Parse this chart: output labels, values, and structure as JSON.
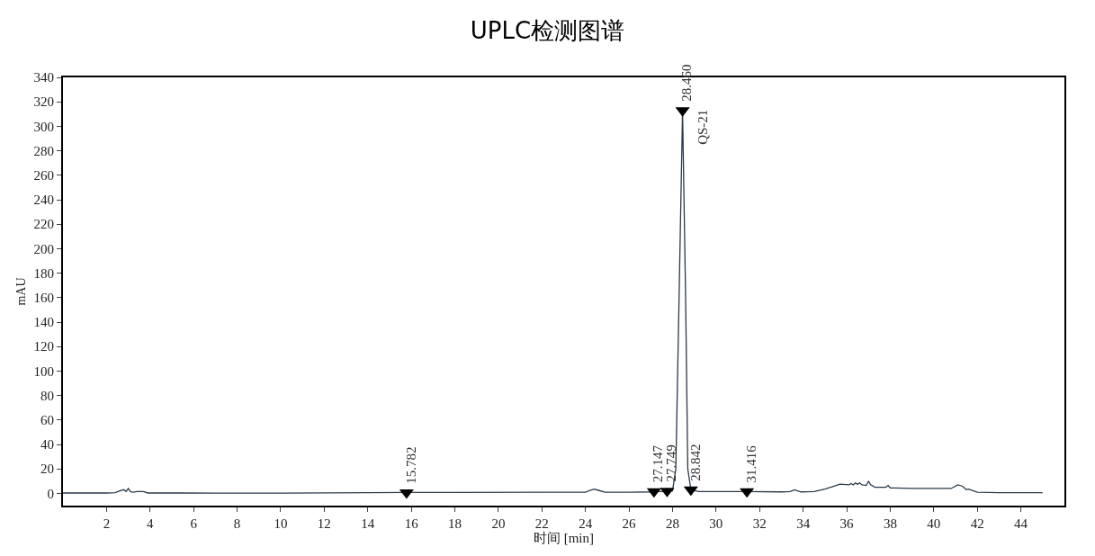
{
  "chart_data": {
    "type": "line",
    "title": "UPLC检测图谱",
    "xlabel": "时间 [min]",
    "ylabel": "mAU",
    "xlim": [
      0,
      46
    ],
    "ylim": [
      -10,
      340
    ],
    "xticks": [
      2,
      4,
      6,
      8,
      10,
      12,
      14,
      16,
      18,
      20,
      22,
      24,
      26,
      28,
      30,
      32,
      34,
      36,
      38,
      40,
      42,
      44
    ],
    "yticks": [
      0,
      20,
      40,
      60,
      80,
      100,
      120,
      140,
      160,
      180,
      200,
      220,
      240,
      260,
      280,
      300,
      320,
      340
    ],
    "grid": false,
    "legend": false,
    "line_style": "solid",
    "series": [
      {
        "color": "#2b3a4a",
        "x": [
          0,
          1,
          2,
          2.4,
          2.6,
          2.8,
          2.9,
          3.0,
          3.1,
          3.2,
          3.4,
          3.7,
          3.9,
          4.5,
          5.5,
          7,
          10,
          14,
          15.782,
          18,
          22,
          24,
          24.2,
          24.4,
          24.6,
          24.9,
          26,
          27,
          27.147,
          27.5,
          27.749,
          28,
          28.15,
          28.3,
          28.46,
          28.6,
          28.7,
          28.842,
          29.2,
          31.416,
          33,
          33.4,
          33.6,
          33.9,
          34.5,
          35,
          35.7,
          36.1,
          36.2,
          36.3,
          36.4,
          36.5,
          36.6,
          36.7,
          36.9,
          37.0,
          37.1,
          37.3,
          37.8,
          37.9,
          38.0,
          38.2,
          39,
          40.8,
          41.1,
          41.3,
          41.5,
          41.6,
          42,
          43,
          45
        ],
        "values": [
          0.3,
          0.3,
          0.3,
          0.5,
          2,
          3,
          1.5,
          4,
          1.5,
          1,
          1.5,
          1.5,
          0.3,
          0.3,
          0.3,
          0.2,
          0.2,
          0.5,
          0.7,
          0.8,
          1,
          1,
          2.5,
          3.5,
          2.5,
          1,
          1,
          1.2,
          1.5,
          1.5,
          2,
          2,
          20,
          160,
          313,
          160,
          20,
          3,
          1.5,
          1.5,
          1.2,
          1.5,
          3,
          1.2,
          1.5,
          3.5,
          7.5,
          7,
          8,
          7,
          8.5,
          7.5,
          8.5,
          7,
          6.5,
          10,
          7,
          5,
          5,
          6.5,
          4.5,
          4.5,
          4,
          4,
          7,
          6,
          3,
          3.5,
          1,
          0.5,
          0.5
        ]
      },
      {
        "type": "scatter",
        "marker": "triangle",
        "color": "#000000",
        "x": [
          15.782,
          27.147,
          27.749,
          28.46,
          28.842,
          31.416
        ],
        "values": [
          0.7,
          1.5,
          2,
          313,
          3,
          1.5
        ]
      }
    ],
    "annotations": [
      {
        "text": "15.782",
        "x": 15.782,
        "y": 0.7
      },
      {
        "text": "27.147",
        "x": 27.147,
        "y": 1.5
      },
      {
        "text": "27.749",
        "x": 27.749,
        "y": 2
      },
      {
        "text": "28.460",
        "x": 28.46,
        "y": 313
      },
      {
        "text": "QS-21",
        "x": 28.46,
        "y": 313
      },
      {
        "text": "28.842",
        "x": 28.842,
        "y": 3
      },
      {
        "text": "31.416",
        "x": 31.416,
        "y": 1.5
      }
    ]
  }
}
